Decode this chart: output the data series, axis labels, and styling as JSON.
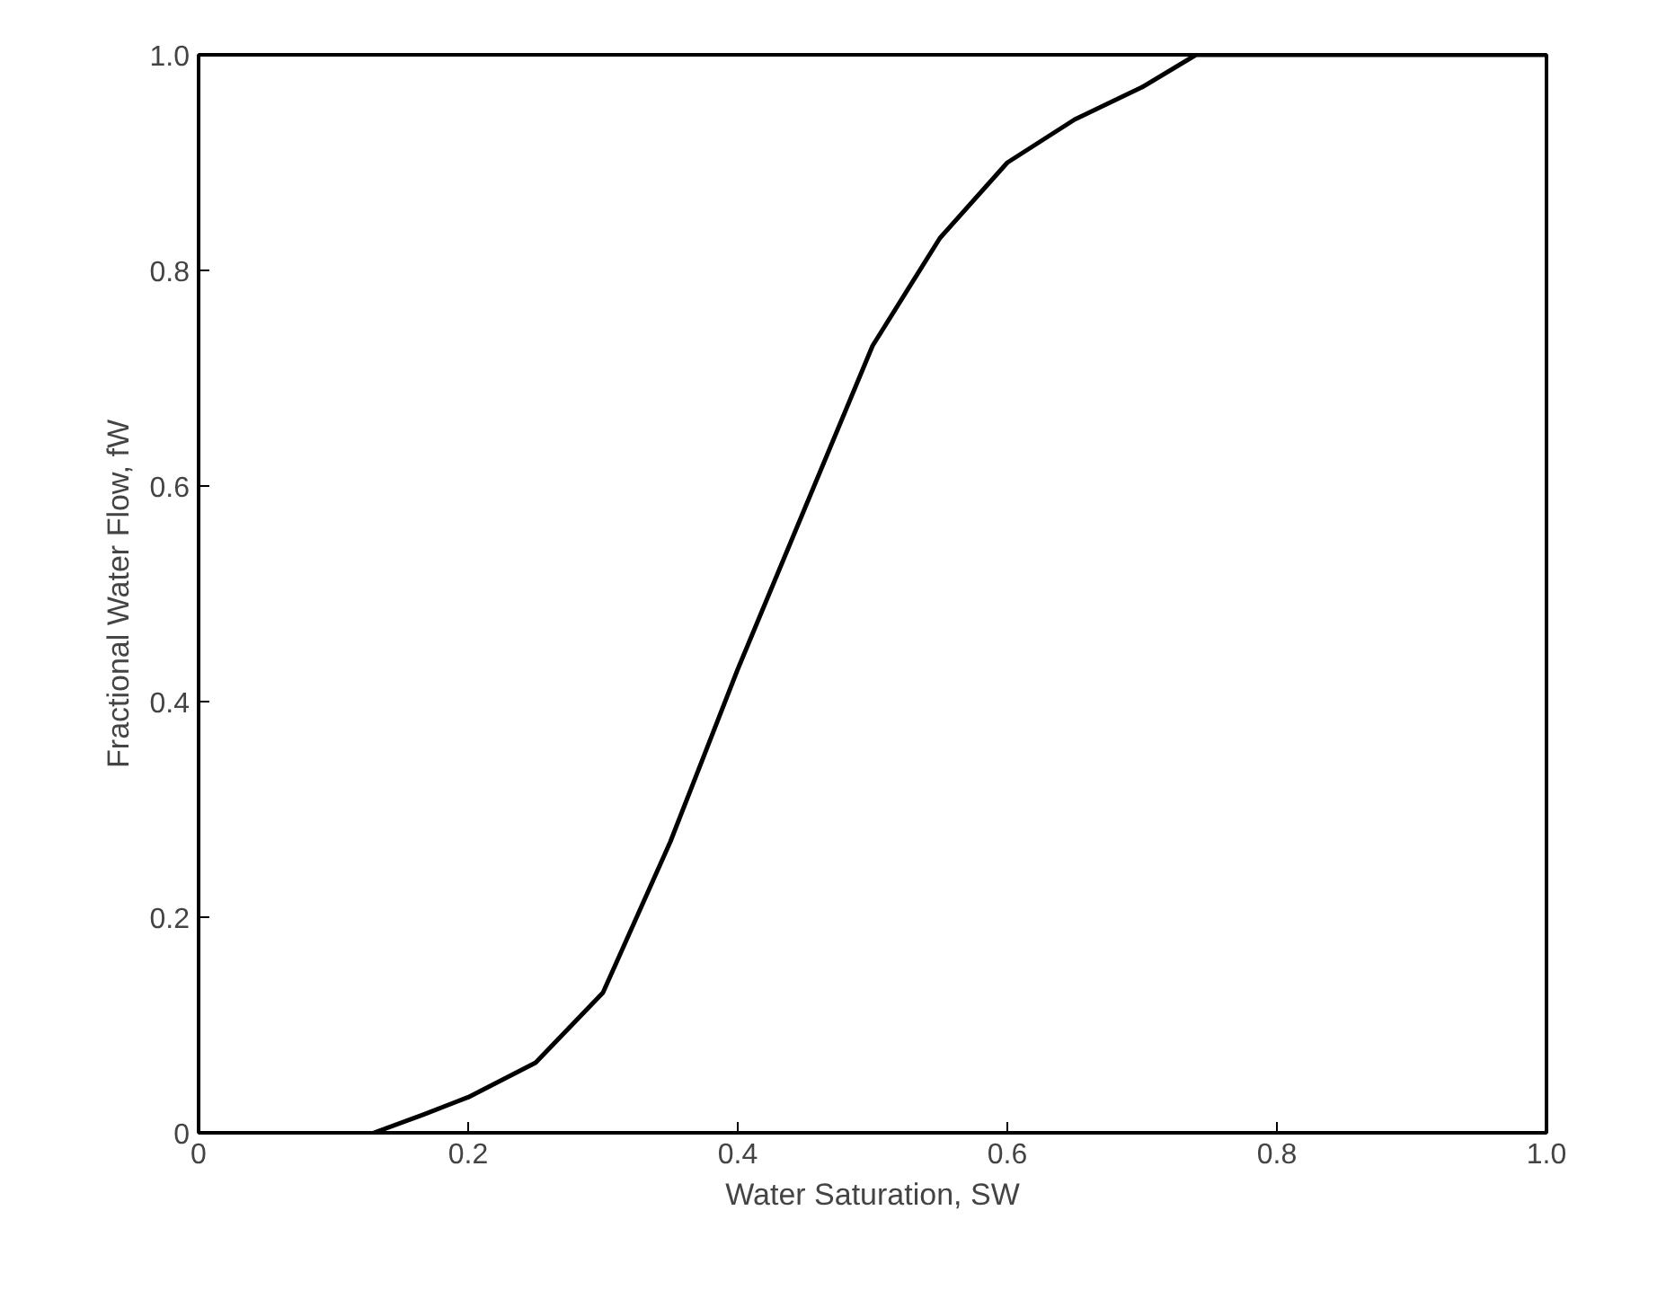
{
  "chart_data": {
    "type": "line",
    "xlabel": "Water Saturation, SW",
    "ylabel": "Fractional Water Flow, fW",
    "x": [
      0.13,
      0.167,
      0.2,
      0.25,
      0.3,
      0.35,
      0.4,
      0.45,
      0.5,
      0.55,
      0.6,
      0.65,
      0.7,
      0.74,
      1.0
    ],
    "series": [
      {
        "color": "#000000",
        "values": [
          0,
          0.017,
          0.033,
          0.065,
          0.13,
          0.27,
          0.43,
          0.58,
          0.73,
          0.83,
          0.9,
          0.94,
          0.97,
          1.0,
          1.0
        ]
      }
    ],
    "xlim": [
      0,
      1.0
    ],
    "ylim": [
      0,
      1.0
    ],
    "xticks": [
      0,
      0.2,
      0.4,
      0.6,
      0.8,
      {
        "value": 1.0,
        "label": "1.0"
      }
    ],
    "yticks": [
      0,
      0.2,
      0.4,
      0.6,
      0.8,
      {
        "value": 1.0,
        "label": "1.0"
      }
    ],
    "grid": false,
    "marker": "none",
    "line_style": "solid"
  }
}
